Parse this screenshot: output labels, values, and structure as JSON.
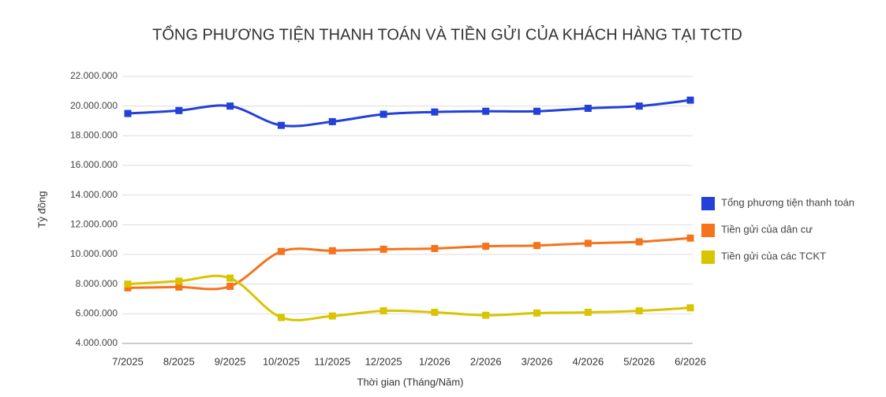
{
  "chart_data": {
    "type": "line",
    "title": "TỔNG PHƯƠNG TIỆN THANH TOÁN VÀ TIỀN GỬI CỦA KHÁCH HÀNG TẠI TCTD",
    "x_label": "Thời gian (Tháng/Năm)",
    "y_label": "Tỷ đồng",
    "categories": [
      "7/2025",
      "8/2025",
      "9/2025",
      "10/2025",
      "11/2025",
      "12/2025",
      "1/2026",
      "2/2026",
      "3/2026",
      "4/2026",
      "5/2026",
      "6/2026"
    ],
    "series": [
      {
        "name": "Tổng phương tiện thanh toán",
        "color": "#2340d8",
        "values": [
          19500000,
          19700000,
          20000000,
          18700000,
          18950000,
          19450000,
          19600000,
          19650000,
          19650000,
          19850000,
          20000000,
          20400000
        ]
      },
      {
        "name": "Tiền gửi của dân cư",
        "color": "#f5731d",
        "values": [
          7750000,
          7800000,
          7850000,
          10200000,
          10250000,
          10350000,
          10400000,
          10550000,
          10600000,
          10750000,
          10850000,
          11100000
        ]
      },
      {
        "name": "Tiền gửi của các TCKT",
        "color": "#d9c400",
        "values": [
          8000000,
          8200000,
          8400000,
          5750000,
          5850000,
          6200000,
          6100000,
          5900000,
          6050000,
          6100000,
          6200000,
          6400000
        ]
      }
    ],
    "ylim": [
      4000000,
      22000000
    ],
    "yticks": [
      {
        "value": 4000000,
        "label": "4.000.000"
      },
      {
        "value": 6000000,
        "label": "6.000.000"
      },
      {
        "value": 8000000,
        "label": "8.000.000"
      },
      {
        "value": 10000000,
        "label": "10.000.000"
      },
      {
        "value": 12000000,
        "label": "12.000.000"
      },
      {
        "value": 14000000,
        "label": "14.000.000"
      },
      {
        "value": 16000000,
        "label": "16.000.000"
      },
      {
        "value": 18000000,
        "label": "18.000.000"
      },
      {
        "value": 20000000,
        "label": "20.000.000"
      },
      {
        "value": 22000000,
        "label": "22.000.000"
      }
    ],
    "grid": true,
    "smooth": true,
    "legend": "right"
  }
}
